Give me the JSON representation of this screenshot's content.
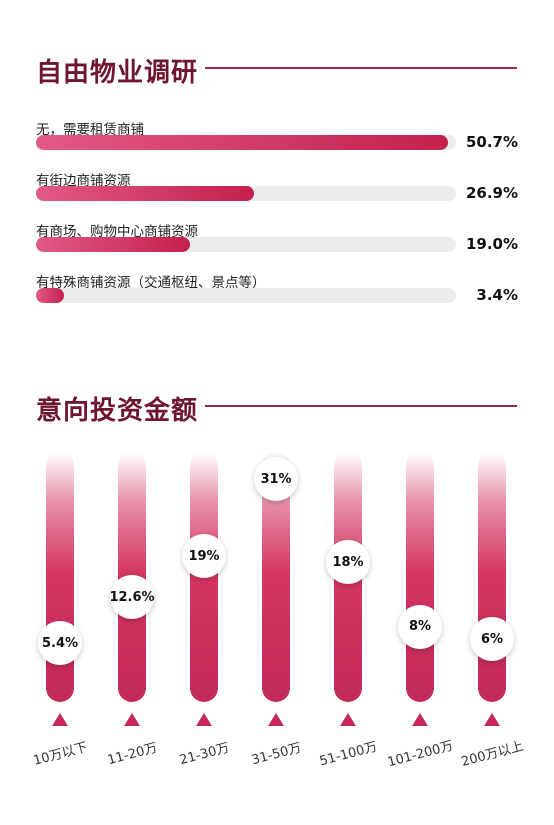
{
  "sections": {
    "research_title": "自由物业调研",
    "investment_title": "意向投资金额"
  },
  "chart_data": [
    {
      "type": "bar",
      "orientation": "horizontal",
      "title": "自由物业调研",
      "categories": [
        "无，需要租赁商铺",
        "有街边商铺资源",
        "有商场、购物中心商铺资源",
        "有特殊商铺资源（交通枢纽、景点等）"
      ],
      "values": [
        50.7,
        26.9,
        19.0,
        3.4
      ],
      "value_labels": [
        "50.7%",
        "26.9%",
        "19.0%",
        "3.4%"
      ],
      "unit": "%",
      "ylim": [
        0,
        60
      ],
      "grid": false,
      "colors": {
        "fill_start": "#e25a86",
        "fill_end": "#c4204e",
        "track": "#ececec"
      }
    },
    {
      "type": "bar",
      "orientation": "vertical",
      "title": "意向投资金额",
      "categories": [
        "10万以下",
        "11-20万",
        "21-30万",
        "31-50万",
        "51-100万",
        "101-200万",
        "200万以上"
      ],
      "values": [
        5.4,
        12.6,
        19,
        31,
        18,
        8,
        6
      ],
      "value_labels": [
        "5.4%",
        "12.6%",
        "19%",
        "31%",
        "18%",
        "8%",
        "6%"
      ],
      "unit": "%",
      "ylim": [
        0,
        35
      ],
      "grid": false,
      "colors": {
        "bar": "#d43662",
        "marker": "#c8295a"
      }
    }
  ],
  "colors": {
    "title": "#6e1630",
    "rule": "#8e2c49"
  }
}
